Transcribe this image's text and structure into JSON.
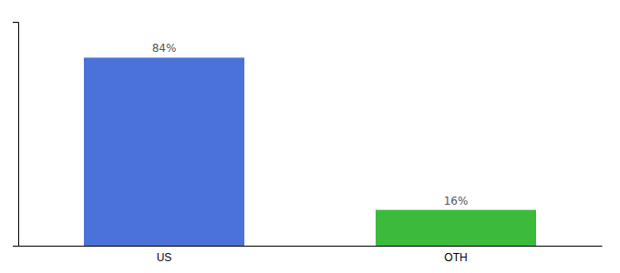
{
  "chart_data": {
    "type": "bar",
    "categories": [
      "US",
      "OTH"
    ],
    "values": [
      84,
      16
    ],
    "value_labels": [
      "84%",
      "16%"
    ],
    "colors": [
      "#4a72d9",
      "#3cba3c"
    ],
    "ylim": [
      0,
      100
    ],
    "data_labels": true,
    "tick_labels": "x",
    "grid": false
  }
}
